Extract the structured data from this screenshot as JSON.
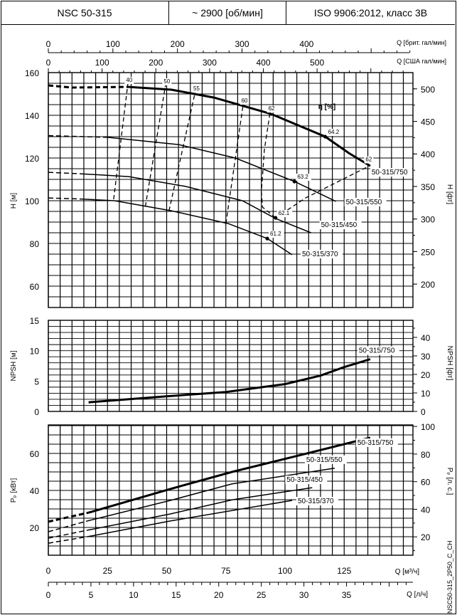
{
  "header": {
    "model": "NSC 50-315",
    "speed": "~ 2900 [об/мин]",
    "standard": "ISO 9906:2012, класс 3B"
  },
  "footer_code": "NSC50-315_2P50_C_CH",
  "chart_data": [
    {
      "type": "line",
      "name_panel": "head",
      "xlabel": "Q [м³/ч]",
      "x_secondary_top": [
        {
          "label": "Q [брит. гал/мин]",
          "ticks": [
            0,
            100,
            200,
            300,
            400
          ],
          "factor_per_m3h": 3.666
        },
        {
          "label": "Q [США гал/мин]",
          "ticks": [
            0,
            100,
            200,
            300,
            400,
            500
          ],
          "factor_per_m3h": 4.403
        }
      ],
      "ylabel": "H [м]",
      "ylabel_right": "H [фт]",
      "ylim": [
        50,
        160
      ],
      "yticks": [
        60,
        80,
        100,
        120,
        140,
        160
      ],
      "yticks_right": [
        200,
        250,
        300,
        350,
        400,
        450,
        500
      ],
      "xlim": [
        0,
        154
      ],
      "grid": true,
      "efficiency_label": "η [%]",
      "series": [
        {
          "name": "50-315/750",
          "weight": "bold",
          "dashed_until": 12,
          "x": [
            0,
            10,
            34,
            52,
            70,
            94,
            117,
            127,
            136
          ],
          "y": [
            154,
            153,
            153.3,
            152,
            148.3,
            140.7,
            130,
            122.3,
            116.3
          ]
        },
        {
          "name": "50-315/550",
          "dashed_until": 8,
          "x": [
            0,
            25,
            55,
            79,
            104,
            121.5
          ],
          "y": [
            130.5,
            129.7,
            126.3,
            120,
            109,
            99.7
          ]
        },
        {
          "name": "50-315/450",
          "dashed_until": 14,
          "x": [
            0,
            14,
            34,
            58,
            82,
            96,
            111
          ],
          "y": [
            113.3,
            112.6,
            111.3,
            106.7,
            100,
            91.7,
            85
          ]
        },
        {
          "name": "50-315/370",
          "dashed_until": 14,
          "x": [
            0,
            14,
            28,
            52,
            76,
            92.5,
            103
          ],
          "y": [
            101.3,
            100.8,
            100,
            95.3,
            89.3,
            82.3,
            74.7
          ]
        }
      ],
      "efficiency_lines": [
        {
          "label": "40",
          "x": [
            27.6,
            33.6
          ],
          "y": [
            100.7,
            154.7
          ]
        },
        {
          "label": "50",
          "x": [
            41,
            49.5
          ],
          "y": [
            97.3,
            154
          ]
        },
        {
          "label": "55",
          "x": [
            51,
            62
          ],
          "y": [
            95.3,
            150.7
          ]
        },
        {
          "label": "60",
          "x": [
            75,
            82.3
          ],
          "y": [
            89.3,
            145
          ]
        },
        {
          "label": "62",
          "x": [
            96,
            90.5,
            90,
            91.3,
            93.7
          ],
          "y": [
            92,
            97,
            104,
            124,
            141.3
          ]
        },
        {
          "label": "62",
          "x": [
            96,
            108.7,
            136
          ],
          "y": [
            92,
            101.3,
            116.5
          ]
        }
      ],
      "bep_points": [
        {
          "label": "64.2",
          "x": 117,
          "y": 130
        },
        {
          "label": "63.2",
          "x": 104,
          "y": 109
        },
        {
          "label": "62.1",
          "x": 96,
          "y": 92
        },
        {
          "label": "61.2",
          "x": 92.5,
          "y": 82.3
        }
      ]
    },
    {
      "type": "line",
      "name_panel": "npsh",
      "ylabel": "NPSH [м]",
      "ylabel_right": "NPSH [фт]",
      "ylim": [
        0,
        15
      ],
      "yticks": [
        0,
        5,
        10,
        15
      ],
      "yticks_right": [
        0,
        10,
        20,
        30,
        40
      ],
      "grid": true,
      "series": [
        {
          "name": "50-315/750",
          "weight": "bold",
          "x": [
            17,
            50,
            75,
            100,
            115,
            125,
            136
          ],
          "y": [
            1.5,
            2.5,
            3.2,
            4.5,
            5.9,
            7.3,
            8.6
          ]
        }
      ]
    },
    {
      "type": "line",
      "name_panel": "power",
      "xlabel": "Q [м³/ч]",
      "xticks": [
        0,
        25,
        50,
        75,
        100,
        125
      ],
      "x_secondary_bottom": {
        "label": "Q [л/ч]",
        "ticks": [
          0,
          5,
          10,
          15,
          20,
          25,
          30,
          35
        ],
        "factor_per_m3h": 0.2778
      },
      "ylabel": "Pₚ [кВт]",
      "ylabel_right": "Pₚ [л. с.]",
      "ylim": [
        5,
        75
      ],
      "yticks": [
        20,
        40,
        60
      ],
      "yticks_right": [
        20,
        40,
        60,
        80,
        100
      ],
      "grid": true,
      "series": [
        {
          "name": "50-315/750",
          "weight": "bold",
          "dashed_until": 17,
          "x": [
            0,
            17,
            51.6,
            77.6,
            103,
            136
          ],
          "y": [
            23.1,
            28,
            40.8,
            50,
            58,
            68.5
          ]
        },
        {
          "name": "50-315/550",
          "dashed_until": 16.5,
          "x": [
            0,
            16.5,
            51.6,
            77.5,
            121
          ],
          "y": [
            17.7,
            23.5,
            34.6,
            43.5,
            52
          ]
        },
        {
          "name": "50-315/450",
          "dashed_until": 16.5,
          "x": [
            0,
            16.5,
            51.6,
            78,
            111.5
          ],
          "y": [
            14.2,
            18.5,
            27.3,
            35,
            41.5
          ]
        },
        {
          "name": "50-315/370",
          "dashed_until": 16.5,
          "x": [
            0,
            16.5,
            51.6,
            103
          ],
          "y": [
            11.5,
            15,
            23.5,
            34.6
          ]
        }
      ]
    }
  ]
}
